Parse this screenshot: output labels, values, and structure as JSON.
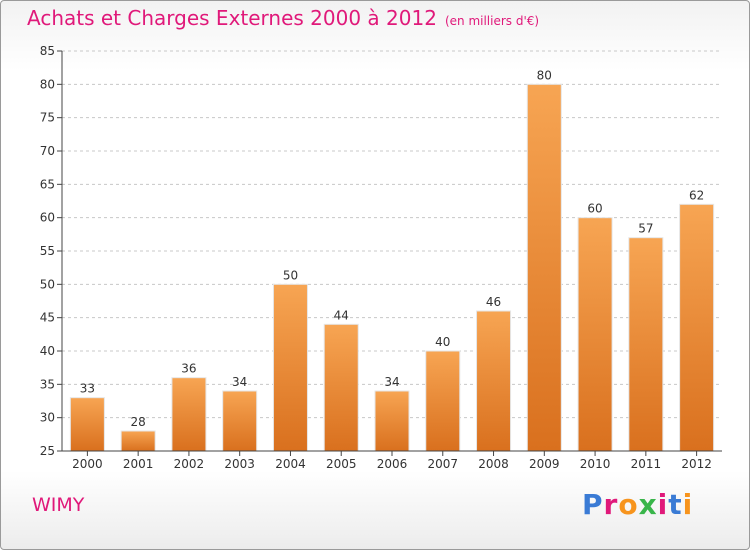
{
  "header": {
    "title": "Achats et Charges Externes 2000 à 2012",
    "subtitle": "(en milliers d'€)"
  },
  "footer": {
    "commune": "WIMY",
    "logo_text": "Proxiti",
    "logo_colors": [
      "#3a7bd5",
      "#e0197a",
      "#f7941d",
      "#39b54a",
      "#e0197a",
      "#3a7bd5",
      "#f7941d"
    ]
  },
  "colors": {
    "bar_top": "#f7a553",
    "bar_bottom": "#d9701e",
    "grid": "#c8c8c8"
  },
  "chart_data": {
    "type": "bar",
    "categories": [
      "2000",
      "2001",
      "2002",
      "2003",
      "2004",
      "2005",
      "2006",
      "2007",
      "2008",
      "2009",
      "2010",
      "2011",
      "2012"
    ],
    "values": [
      33,
      28,
      36,
      34,
      50,
      44,
      34,
      40,
      46,
      80,
      60,
      57,
      62
    ],
    "ylim": [
      25,
      85
    ],
    "yticks": [
      25,
      30,
      35,
      40,
      45,
      50,
      55,
      60,
      65,
      70,
      75,
      80,
      85
    ],
    "grid": true
  }
}
